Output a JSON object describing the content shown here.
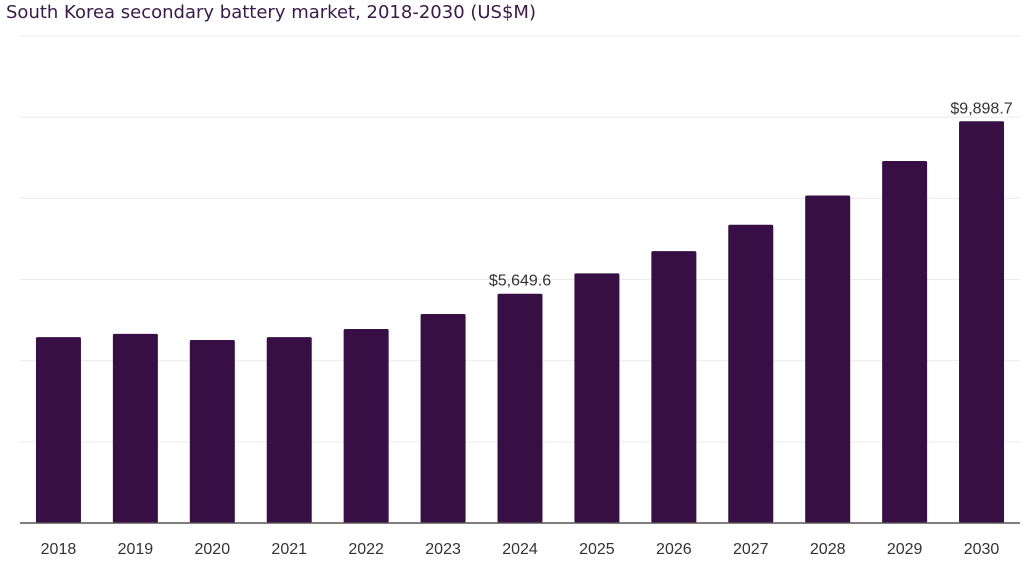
{
  "chart_data": {
    "type": "bar",
    "title": "South Korea secondary battery market, 2018-2030 (US$M)",
    "categories": [
      "2018",
      "2019",
      "2020",
      "2021",
      "2022",
      "2023",
      "2024",
      "2025",
      "2026",
      "2027",
      "2028",
      "2029",
      "2030"
    ],
    "values": [
      4580,
      4660,
      4510,
      4580,
      4780,
      5150,
      5649.6,
      6150,
      6700,
      7350,
      8070,
      8920,
      9898.7
    ],
    "data_labels": [
      {
        "category": "2024",
        "text": "$5,649.6"
      },
      {
        "category": "2030",
        "text": "$9,898.7"
      }
    ],
    "xlabel": "",
    "ylabel": "",
    "ylim": [
      0,
      12000
    ],
    "grid": true,
    "legend": "none",
    "colors": {
      "bar": "#370f45",
      "grid": "#ececec",
      "axis": "#555555",
      "title": "#3a1a47"
    }
  }
}
